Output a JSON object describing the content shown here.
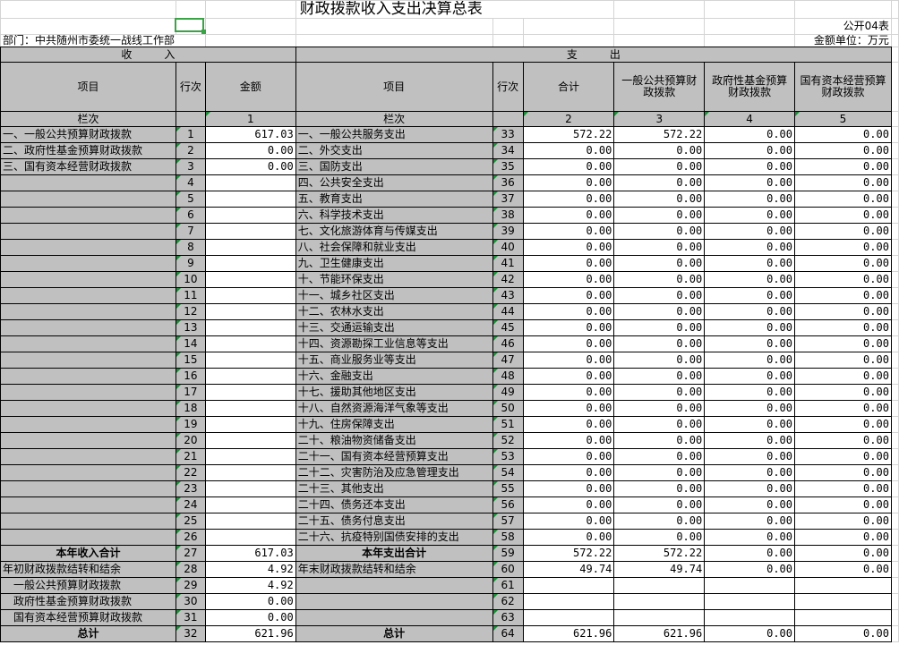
{
  "title": "财政拨款收入支出决算总表",
  "form_no": "公开04表",
  "department": "部门：中共随州市委统一战线工作部",
  "unit": "金额单位：万元",
  "income_header": "收　　　入",
  "expense_header": "支　　　出",
  "col_headers": {
    "item": "项目",
    "row_no": "行次",
    "amount": "金额",
    "item2": "项目",
    "row_no2": "行次",
    "total": "合计",
    "general": "一般公共预算财政拨款",
    "fund": "政府性基金预算财政拨款",
    "state": "国有资本经营预算财政拨款"
  },
  "lanci": {
    "label": "栏次",
    "c1": "1",
    "label2": "栏次",
    "c2": "2",
    "c3": "3",
    "c4": "4",
    "c5": "5"
  },
  "rows": [
    {
      "in": "一、一般公共预算财政拨款",
      "n1": "1",
      "amt": "617.03",
      "out": "一、一般公共服务支出",
      "n2": "33",
      "v": [
        "572.22",
        "572.22",
        "0.00",
        "0.00"
      ]
    },
    {
      "in": "二、政府性基金预算财政拨款",
      "n1": "2",
      "amt": "0.00",
      "out": "二、外交支出",
      "n2": "34",
      "v": [
        "0.00",
        "0.00",
        "0.00",
        "0.00"
      ]
    },
    {
      "in": "三、国有资本经营财政拨款",
      "n1": "3",
      "amt": "0.00",
      "out": "三、国防支出",
      "n2": "35",
      "v": [
        "0.00",
        "0.00",
        "0.00",
        "0.00"
      ]
    },
    {
      "in": "",
      "n1": "4",
      "amt": "",
      "out": "四、公共安全支出",
      "n2": "36",
      "v": [
        "0.00",
        "0.00",
        "0.00",
        "0.00"
      ]
    },
    {
      "in": "",
      "n1": "5",
      "amt": "",
      "out": "五、教育支出",
      "n2": "37",
      "v": [
        "0.00",
        "0.00",
        "0.00",
        "0.00"
      ]
    },
    {
      "in": "",
      "n1": "6",
      "amt": "",
      "out": "六、科学技术支出",
      "n2": "38",
      "v": [
        "0.00",
        "0.00",
        "0.00",
        "0.00"
      ]
    },
    {
      "in": "",
      "n1": "7",
      "amt": "",
      "out": "七、文化旅游体育与传媒支出",
      "n2": "39",
      "v": [
        "0.00",
        "0.00",
        "0.00",
        "0.00"
      ]
    },
    {
      "in": "",
      "n1": "8",
      "amt": "",
      "out": "八、社会保障和就业支出",
      "n2": "40",
      "v": [
        "0.00",
        "0.00",
        "0.00",
        "0.00"
      ]
    },
    {
      "in": "",
      "n1": "9",
      "amt": "",
      "out": "九、卫生健康支出",
      "n2": "41",
      "v": [
        "0.00",
        "0.00",
        "0.00",
        "0.00"
      ]
    },
    {
      "in": "",
      "n1": "10",
      "amt": "",
      "out": "十、节能环保支出",
      "n2": "42",
      "v": [
        "0.00",
        "0.00",
        "0.00",
        "0.00"
      ]
    },
    {
      "in": "",
      "n1": "11",
      "amt": "",
      "out": "十一、城乡社区支出",
      "n2": "43",
      "v": [
        "0.00",
        "0.00",
        "0.00",
        "0.00"
      ]
    },
    {
      "in": "",
      "n1": "12",
      "amt": "",
      "out": "十二、农林水支出",
      "n2": "44",
      "v": [
        "0.00",
        "0.00",
        "0.00",
        "0.00"
      ]
    },
    {
      "in": "",
      "n1": "13",
      "amt": "",
      "out": "十三、交通运输支出",
      "n2": "45",
      "v": [
        "0.00",
        "0.00",
        "0.00",
        "0.00"
      ]
    },
    {
      "in": "",
      "n1": "14",
      "amt": "",
      "out": "十四、资源勘探工业信息等支出",
      "n2": "46",
      "v": [
        "0.00",
        "0.00",
        "0.00",
        "0.00"
      ]
    },
    {
      "in": "",
      "n1": "15",
      "amt": "",
      "out": "十五、商业服务业等支出",
      "n2": "47",
      "v": [
        "0.00",
        "0.00",
        "0.00",
        "0.00"
      ]
    },
    {
      "in": "",
      "n1": "16",
      "amt": "",
      "out": "十六、金融支出",
      "n2": "48",
      "v": [
        "0.00",
        "0.00",
        "0.00",
        "0.00"
      ]
    },
    {
      "in": "",
      "n1": "17",
      "amt": "",
      "out": "十七、援助其他地区支出",
      "n2": "49",
      "v": [
        "0.00",
        "0.00",
        "0.00",
        "0.00"
      ]
    },
    {
      "in": "",
      "n1": "18",
      "amt": "",
      "out": "十八、自然资源海洋气象等支出",
      "n2": "50",
      "v": [
        "0.00",
        "0.00",
        "0.00",
        "0.00"
      ]
    },
    {
      "in": "",
      "n1": "19",
      "amt": "",
      "out": "十九、住房保障支出",
      "n2": "51",
      "v": [
        "0.00",
        "0.00",
        "0.00",
        "0.00"
      ]
    },
    {
      "in": "",
      "n1": "20",
      "amt": "",
      "out": "二十、粮油物资储备支出",
      "n2": "52",
      "v": [
        "0.00",
        "0.00",
        "0.00",
        "0.00"
      ]
    },
    {
      "in": "",
      "n1": "21",
      "amt": "",
      "out": "二十一、国有资本经营预算支出",
      "n2": "53",
      "v": [
        "0.00",
        "0.00",
        "0.00",
        "0.00"
      ]
    },
    {
      "in": "",
      "n1": "22",
      "amt": "",
      "out": "二十二、灾害防治及应急管理支出",
      "n2": "54",
      "v": [
        "0.00",
        "0.00",
        "0.00",
        "0.00"
      ]
    },
    {
      "in": "",
      "n1": "23",
      "amt": "",
      "out": "二十三、其他支出",
      "n2": "55",
      "v": [
        "0.00",
        "0.00",
        "0.00",
        "0.00"
      ]
    },
    {
      "in": "",
      "n1": "24",
      "amt": "",
      "out": "二十四、债务还本支出",
      "n2": "56",
      "v": [
        "0.00",
        "0.00",
        "0.00",
        "0.00"
      ]
    },
    {
      "in": "",
      "n1": "25",
      "amt": "",
      "out": "二十五、债务付息支出",
      "n2": "57",
      "v": [
        "0.00",
        "0.00",
        "0.00",
        "0.00"
      ]
    },
    {
      "in": "",
      "n1": "26",
      "amt": "",
      "out": "二十六、抗疫特别国债安排的支出",
      "n2": "58",
      "v": [
        "0.00",
        "0.00",
        "0.00",
        "0.00"
      ]
    },
    {
      "in": "本年收入合计",
      "n1": "27",
      "amt": "617.03",
      "out": "本年支出合计",
      "n2": "59",
      "v": [
        "572.22",
        "572.22",
        "0.00",
        "0.00"
      ],
      "bold": true
    },
    {
      "in": "年初财政拨款结转和结余",
      "n1": "28",
      "amt": "4.92",
      "out": "年末财政拨款结转和结余",
      "n2": "60",
      "v": [
        "49.74",
        "49.74",
        "0.00",
        "0.00"
      ]
    },
    {
      "in": "　一般公共预算财政拨款",
      "n1": "29",
      "amt": "4.92",
      "out": "",
      "n2": "61",
      "v": [
        "",
        "",
        "",
        ""
      ]
    },
    {
      "in": "　政府性基金预算财政拨款",
      "n1": "30",
      "amt": "0.00",
      "out": "",
      "n2": "62",
      "v": [
        "",
        "",
        "",
        ""
      ]
    },
    {
      "in": "　国有资本经营预算财政拨款",
      "n1": "31",
      "amt": "0.00",
      "out": "",
      "n2": "63",
      "v": [
        "",
        "",
        "",
        ""
      ]
    },
    {
      "in": "总计",
      "n1": "32",
      "amt": "621.96",
      "out": "总计",
      "n2": "64",
      "v": [
        "621.96",
        "621.96",
        "0.00",
        "0.00"
      ],
      "bold": true
    }
  ]
}
